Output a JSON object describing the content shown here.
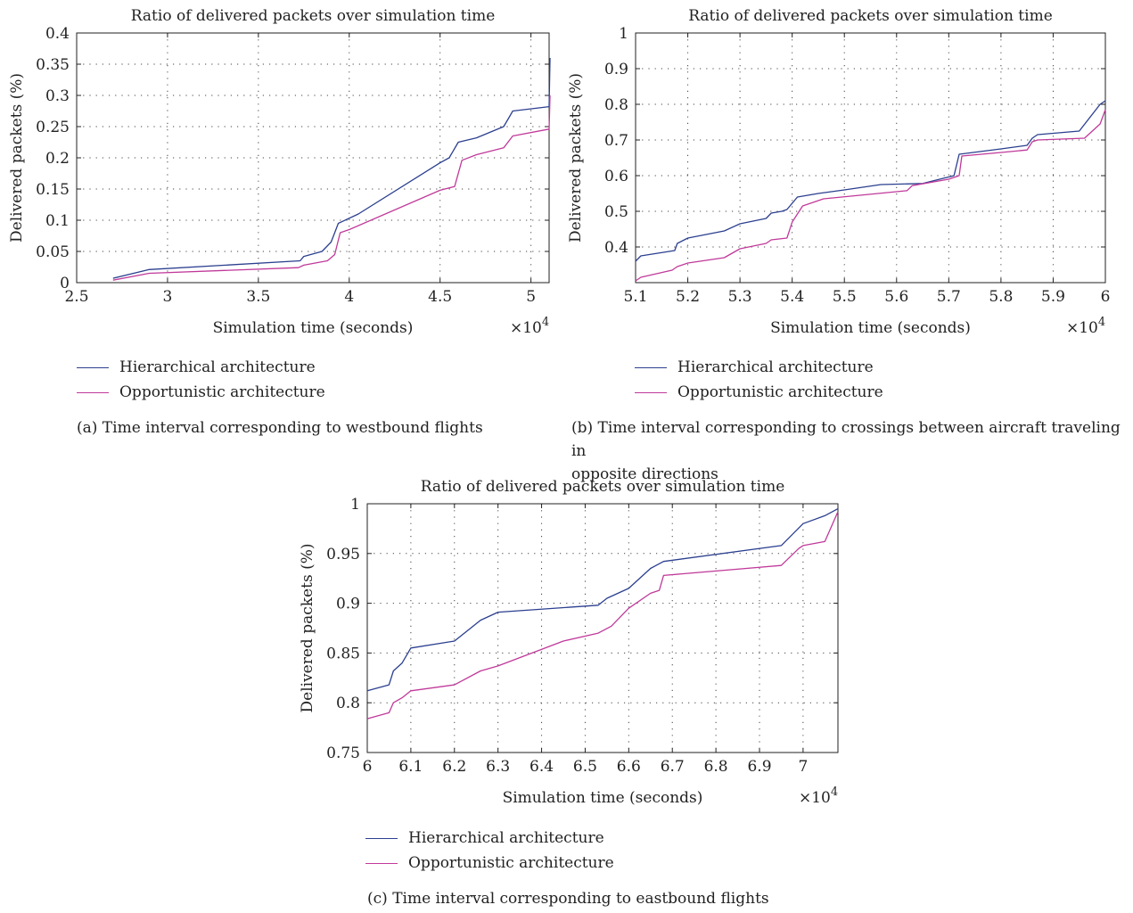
{
  "colors": {
    "hierarchical": "#2b3f8f",
    "opportunistic": "#c0399a"
  },
  "legend": {
    "hierarchical": "Hierarchical architecture",
    "opportunistic": "Opportunistic architecture"
  },
  "captions": {
    "a": "(a)  Time interval corresponding to westbound flights",
    "b_line1": "(b)  Time interval corresponding to crossings between aircraft traveling in",
    "b_line2": "opposite directions",
    "c": "(c)  Time interval corresponding to eastbound flights"
  },
  "chart_data": [
    {
      "id": "a",
      "type": "line",
      "title": "Ratio of delivered packets over simulation time",
      "xlabel": "Simulation time (seconds)",
      "ylabel": "Delivered packets (%)",
      "x_exponent": "×10",
      "x_exponent_power": "4",
      "xlim": [
        2.5,
        5.1
      ],
      "ylim": [
        0,
        0.4
      ],
      "xticks": [
        2.5,
        3,
        3.5,
        4,
        4.5,
        5
      ],
      "xtick_labels": [
        "2.5",
        "3",
        "3.5",
        "4",
        "4.5",
        "5"
      ],
      "yticks": [
        0,
        0.05,
        0.1,
        0.15,
        0.2,
        0.25,
        0.3,
        0.35,
        0.4
      ],
      "ytick_labels": [
        "0",
        "0.05",
        "0.1",
        "0.15",
        "0.2",
        "0.25",
        "0.3",
        "0.35",
        "0.4"
      ],
      "grid": true,
      "series": [
        {
          "name": "Hierarchical architecture",
          "color_key": "hierarchical",
          "points": [
            [
              2.7,
              0.007
            ],
            [
              2.9,
              0.021
            ],
            [
              3.73,
              0.035
            ],
            [
              3.75,
              0.042
            ],
            [
              3.85,
              0.05
            ],
            [
              3.9,
              0.065
            ],
            [
              3.92,
              0.08
            ],
            [
              3.94,
              0.095
            ],
            [
              4.05,
              0.11
            ],
            [
              4.5,
              0.192
            ],
            [
              4.55,
              0.2
            ],
            [
              4.6,
              0.225
            ],
            [
              4.7,
              0.232
            ],
            [
              4.85,
              0.25
            ],
            [
              4.88,
              0.265
            ],
            [
              4.9,
              0.275
            ],
            [
              5.1,
              0.282
            ],
            [
              5.105,
              0.36
            ]
          ]
        },
        {
          "name": "Opportunistic architecture",
          "color_key": "opportunistic",
          "points": [
            [
              2.7,
              0.004
            ],
            [
              2.9,
              0.015
            ],
            [
              3.72,
              0.024
            ],
            [
              3.75,
              0.028
            ],
            [
              3.88,
              0.035
            ],
            [
              3.92,
              0.045
            ],
            [
              3.95,
              0.08
            ],
            [
              4.0,
              0.085
            ],
            [
              4.5,
              0.148
            ],
            [
              4.58,
              0.154
            ],
            [
              4.62,
              0.196
            ],
            [
              4.7,
              0.205
            ],
            [
              4.85,
              0.216
            ],
            [
              4.9,
              0.235
            ],
            [
              5.1,
              0.246
            ],
            [
              5.105,
              0.3
            ]
          ]
        }
      ]
    },
    {
      "id": "b",
      "type": "line",
      "title": "Ratio of delivered packets over simulation time",
      "xlabel": "Simulation time (seconds)",
      "ylabel": "Delivered packets (%)",
      "x_exponent": "×10",
      "x_exponent_power": "4",
      "xlim": [
        5.1,
        6.0
      ],
      "ylim": [
        0.3,
        1.0
      ],
      "xticks": [
        5.1,
        5.2,
        5.3,
        5.4,
        5.5,
        5.6,
        5.7,
        5.8,
        5.9,
        6.0
      ],
      "xtick_labels": [
        "5.1",
        "5.2",
        "5.3",
        "5.4",
        "5.5",
        "5.6",
        "5.7",
        "5.8",
        "5.9",
        "6"
      ],
      "yticks": [
        0.4,
        0.5,
        0.6,
        0.7,
        0.8,
        0.9,
        1.0
      ],
      "ytick_labels": [
        "0.4",
        "0.5",
        "0.6",
        "0.7",
        "0.8",
        "0.9",
        "1"
      ],
      "grid": true,
      "series": [
        {
          "name": "Hierarchical architecture",
          "color_key": "hierarchical",
          "points": [
            [
              5.1,
              0.36
            ],
            [
              5.11,
              0.375
            ],
            [
              5.175,
              0.39
            ],
            [
              5.18,
              0.41
            ],
            [
              5.2,
              0.425
            ],
            [
              5.27,
              0.445
            ],
            [
              5.3,
              0.465
            ],
            [
              5.35,
              0.48
            ],
            [
              5.36,
              0.495
            ],
            [
              5.38,
              0.5
            ],
            [
              5.39,
              0.505
            ],
            [
              5.41,
              0.54
            ],
            [
              5.45,
              0.55
            ],
            [
              5.5,
              0.56
            ],
            [
              5.57,
              0.575
            ],
            [
              5.65,
              0.578
            ],
            [
              5.71,
              0.6
            ],
            [
              5.72,
              0.66
            ],
            [
              5.8,
              0.675
            ],
            [
              5.85,
              0.685
            ],
            [
              5.86,
              0.705
            ],
            [
              5.87,
              0.715
            ],
            [
              5.95,
              0.725
            ],
            [
              5.99,
              0.8
            ],
            [
              6.0,
              0.81
            ]
          ]
        },
        {
          "name": "Opportunistic architecture",
          "color_key": "opportunistic",
          "points": [
            [
              5.1,
              0.305
            ],
            [
              5.11,
              0.315
            ],
            [
              5.17,
              0.335
            ],
            [
              5.18,
              0.345
            ],
            [
              5.2,
              0.355
            ],
            [
              5.27,
              0.37
            ],
            [
              5.3,
              0.395
            ],
            [
              5.35,
              0.41
            ],
            [
              5.36,
              0.42
            ],
            [
              5.39,
              0.425
            ],
            [
              5.4,
              0.47
            ],
            [
              5.42,
              0.515
            ],
            [
              5.44,
              0.525
            ],
            [
              5.46,
              0.535
            ],
            [
              5.62,
              0.558
            ],
            [
              5.63,
              0.572
            ],
            [
              5.7,
              0.59
            ],
            [
              5.72,
              0.6
            ],
            [
              5.725,
              0.655
            ],
            [
              5.8,
              0.665
            ],
            [
              5.85,
              0.672
            ],
            [
              5.86,
              0.695
            ],
            [
              5.87,
              0.7
            ],
            [
              5.96,
              0.705
            ],
            [
              5.99,
              0.745
            ],
            [
              6.0,
              0.785
            ]
          ]
        }
      ]
    },
    {
      "id": "c",
      "type": "line",
      "title": "Ratio of delivered packets over simulation time",
      "xlabel": "Simulation time (seconds)",
      "ylabel": "Delivered packets (%)",
      "x_exponent": "×10",
      "x_exponent_power": "4",
      "xlim": [
        6.0,
        7.08
      ],
      "ylim": [
        0.75,
        1.0
      ],
      "xticks": [
        6.0,
        6.1,
        6.2,
        6.3,
        6.4,
        6.5,
        6.6,
        6.7,
        6.8,
        6.9,
        7.0
      ],
      "xtick_labels": [
        "6",
        "6.1",
        "6.2",
        "6.3",
        "6.4",
        "6.5",
        "6.6",
        "6.7",
        "6.8",
        "6.9",
        "7"
      ],
      "yticks": [
        0.75,
        0.8,
        0.85,
        0.9,
        0.95,
        1.0
      ],
      "ytick_labels": [
        "0.75",
        "0.8",
        "0.85",
        "0.9",
        "0.95",
        "1"
      ],
      "grid": true,
      "series": [
        {
          "name": "Hierarchical architecture",
          "color_key": "hierarchical",
          "points": [
            [
              6.0,
              0.812
            ],
            [
              6.05,
              0.818
            ],
            [
              6.06,
              0.832
            ],
            [
              6.08,
              0.84
            ],
            [
              6.1,
              0.855
            ],
            [
              6.2,
              0.862
            ],
            [
              6.26,
              0.883
            ],
            [
              6.3,
              0.891
            ],
            [
              6.53,
              0.898
            ],
            [
              6.55,
              0.905
            ],
            [
              6.6,
              0.915
            ],
            [
              6.65,
              0.935
            ],
            [
              6.68,
              0.942
            ],
            [
              6.95,
              0.958
            ],
            [
              7.0,
              0.98
            ],
            [
              7.05,
              0.988
            ],
            [
              7.08,
              0.995
            ]
          ]
        },
        {
          "name": "Opportunistic architecture",
          "color_key": "opportunistic",
          "points": [
            [
              6.0,
              0.784
            ],
            [
              6.05,
              0.79
            ],
            [
              6.06,
              0.8
            ],
            [
              6.08,
              0.805
            ],
            [
              6.1,
              0.812
            ],
            [
              6.2,
              0.818
            ],
            [
              6.26,
              0.832
            ],
            [
              6.3,
              0.837
            ],
            [
              6.45,
              0.862
            ],
            [
              6.53,
              0.87
            ],
            [
              6.56,
              0.877
            ],
            [
              6.6,
              0.895
            ],
            [
              6.65,
              0.91
            ],
            [
              6.67,
              0.913
            ],
            [
              6.68,
              0.928
            ],
            [
              6.95,
              0.938
            ],
            [
              6.99,
              0.955
            ],
            [
              7.0,
              0.958
            ],
            [
              7.05,
              0.962
            ],
            [
              7.08,
              0.992
            ]
          ]
        }
      ]
    }
  ]
}
